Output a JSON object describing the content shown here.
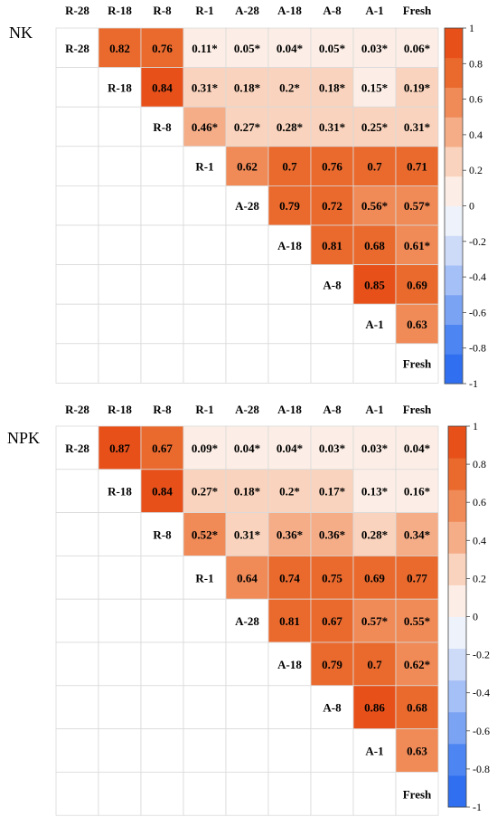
{
  "chart_data": [
    {
      "type": "heatmap",
      "title": "NK",
      "categories": [
        "R-28",
        "R-18",
        "R-8",
        "R-1",
        "A-28",
        "A-18",
        "A-8",
        "A-1",
        "Fresh"
      ],
      "cells": [
        [
          "",
          "0.82",
          "0.76",
          "0.11*",
          "0.05*",
          "0.04*",
          "0.05*",
          "0.03*",
          "0.06*"
        ],
        [
          "",
          "",
          "0.84",
          "0.31*",
          "0.18*",
          "0.2*",
          "0.18*",
          "0.15*",
          "0.19*"
        ],
        [
          "",
          "",
          "",
          "0.46*",
          "0.27*",
          "0.28*",
          "0.31*",
          "0.25*",
          "0.31*"
        ],
        [
          "",
          "",
          "",
          "",
          "0.62",
          "0.7",
          "0.76",
          "0.7",
          "0.71"
        ],
        [
          "",
          "",
          "",
          "",
          "",
          "0.79",
          "0.72",
          "0.56*",
          "0.57*"
        ],
        [
          "",
          "",
          "",
          "",
          "",
          "",
          "0.81",
          "0.68",
          "0.61*"
        ],
        [
          "",
          "",
          "",
          "",
          "",
          "",
          "",
          "0.85",
          "0.69"
        ],
        [
          "",
          "",
          "",
          "",
          "",
          "",
          "",
          "",
          "0.63"
        ],
        [
          "",
          "",
          "",
          "",
          "",
          "",
          "",
          "",
          ""
        ]
      ],
      "colorbar_ticks": [
        "1",
        "0.8",
        "0.6",
        "0.4",
        "0.2",
        "0",
        "-0.2",
        "-0.4",
        "-0.6",
        "-0.8",
        "-1"
      ],
      "vmin": -1,
      "vmax": 1
    },
    {
      "type": "heatmap",
      "title": "NPK",
      "categories": [
        "R-28",
        "R-18",
        "R-8",
        "R-1",
        "A-28",
        "A-18",
        "A-8",
        "A-1",
        "Fresh"
      ],
      "cells": [
        [
          "",
          "0.87",
          "0.67",
          "0.09*",
          "0.04*",
          "0.04*",
          "0.03*",
          "0.03*",
          "0.04*"
        ],
        [
          "",
          "",
          "0.84",
          "0.27*",
          "0.18*",
          "0.2*",
          "0.17*",
          "0.13*",
          "0.16*"
        ],
        [
          "",
          "",
          "",
          "0.52*",
          "0.31*",
          "0.36*",
          "0.36*",
          "0.28*",
          "0.34*"
        ],
        [
          "",
          "",
          "",
          "",
          "0.64",
          "0.74",
          "0.75",
          "0.69",
          "0.77"
        ],
        [
          "",
          "",
          "",
          "",
          "",
          "0.81",
          "0.67",
          "0.57*",
          "0.55*"
        ],
        [
          "",
          "",
          "",
          "",
          "",
          "",
          "0.79",
          "0.7",
          "0.62*"
        ],
        [
          "",
          "",
          "",
          "",
          "",
          "",
          "",
          "0.86",
          "0.68"
        ],
        [
          "",
          "",
          "",
          "",
          "",
          "",
          "",
          "",
          "0.63"
        ],
        [
          "",
          "",
          "",
          "",
          "",
          "",
          "",
          "",
          ""
        ]
      ],
      "colorbar_ticks": [
        "1",
        "0.8",
        "0.6",
        "0.4",
        "0.2",
        "0",
        "-0.2",
        "-0.4",
        "-0.6",
        "-0.8",
        "-1"
      ],
      "vmin": -1,
      "vmax": 1
    }
  ],
  "colors": {
    "palette": [
      "#2f6ff0",
      "#4d85f2",
      "#7ba3f4",
      "#a5c0f6",
      "#cddbf8",
      "#eef3fb",
      "#fceee6",
      "#f9d3bd",
      "#f5ad88",
      "#f08a57",
      "#ea6a2e",
      "#e8501a"
    ],
    "grid": "#d9d9d9"
  }
}
